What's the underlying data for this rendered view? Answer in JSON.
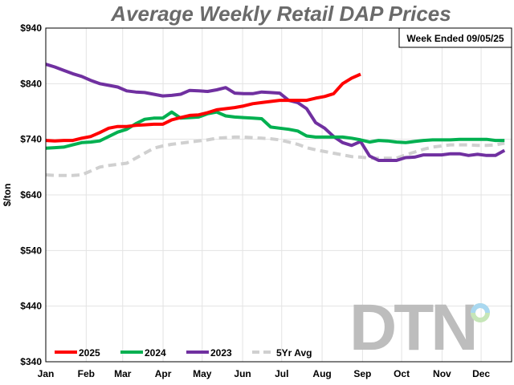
{
  "chart_data": {
    "type": "line",
    "title": "Average Weekly Retail DAP Prices",
    "annotation": "Week Ended 09/05/25",
    "ylabel": "$/ton",
    "xlabel": "",
    "ylim": [
      340,
      940
    ],
    "yticks": [
      "$340",
      "$440",
      "$540",
      "$640",
      "$740",
      "$840",
      "$940"
    ],
    "ytick_values": [
      340,
      440,
      540,
      640,
      740,
      840,
      940
    ],
    "x_unit": "week of year",
    "months": [
      "Jan",
      "Feb",
      "Mar",
      "Apr",
      "May",
      "Jun",
      "Jul",
      "Aug",
      "Sep",
      "Oct",
      "Nov",
      "Dec"
    ],
    "grid": true,
    "legend_position": "bottom-left",
    "series": [
      {
        "name": "2025",
        "color": "#ff0000",
        "dashed": false,
        "values": [
          738,
          737,
          738,
          738,
          742,
          745,
          752,
          760,
          763,
          763,
          765,
          766,
          767,
          767,
          775,
          779,
          783,
          784,
          788,
          793,
          795,
          797,
          800,
          804,
          806,
          808,
          810,
          810,
          810,
          810,
          814,
          817,
          822,
          840,
          850,
          857
        ]
      },
      {
        "name": "2024",
        "color": "#00b050",
        "dashed": false,
        "values": [
          724,
          725,
          726,
          730,
          734,
          735,
          737,
          745,
          753,
          758,
          768,
          776,
          778,
          778,
          789,
          778,
          779,
          780,
          786,
          789,
          782,
          780,
          779,
          778,
          777,
          762,
          760,
          758,
          755,
          746,
          744,
          744,
          744,
          744,
          742,
          739,
          735,
          738,
          737,
          735,
          734,
          736,
          738,
          739,
          739,
          739,
          740,
          740,
          740,
          740,
          738,
          738
        ]
      },
      {
        "name": "2023",
        "color": "#7030a0",
        "dashed": false,
        "values": [
          875,
          870,
          864,
          858,
          853,
          846,
          840,
          837,
          834,
          827,
          825,
          824,
          821,
          818,
          819,
          821,
          828,
          827,
          826,
          829,
          833,
          823,
          822,
          822,
          825,
          824,
          823,
          810,
          806,
          795,
          770,
          760,
          745,
          734,
          729,
          736,
          710,
          702,
          702,
          702,
          707,
          708,
          712,
          712,
          712,
          714,
          714,
          711,
          713,
          711,
          711,
          720
        ]
      },
      {
        "name": "5Yr Avg",
        "color": "#d0d0d0",
        "dashed": true,
        "values": [
          676,
          675,
          675,
          675,
          676,
          683,
          690,
          693,
          695,
          697,
          706,
          715,
          724,
          728,
          731,
          733,
          735,
          737,
          739,
          742,
          743,
          744,
          744,
          743,
          742,
          741,
          739,
          735,
          731,
          725,
          721,
          718,
          715,
          712,
          709,
          708,
          706,
          706,
          706,
          706,
          712,
          717,
          722,
          726,
          728,
          730,
          730,
          730,
          729,
          729,
          730,
          733
        ]
      }
    ]
  },
  "logo": {
    "text": "DTN",
    "ring_colors": [
      "#a9d8f0",
      "#c6e6b8"
    ]
  }
}
